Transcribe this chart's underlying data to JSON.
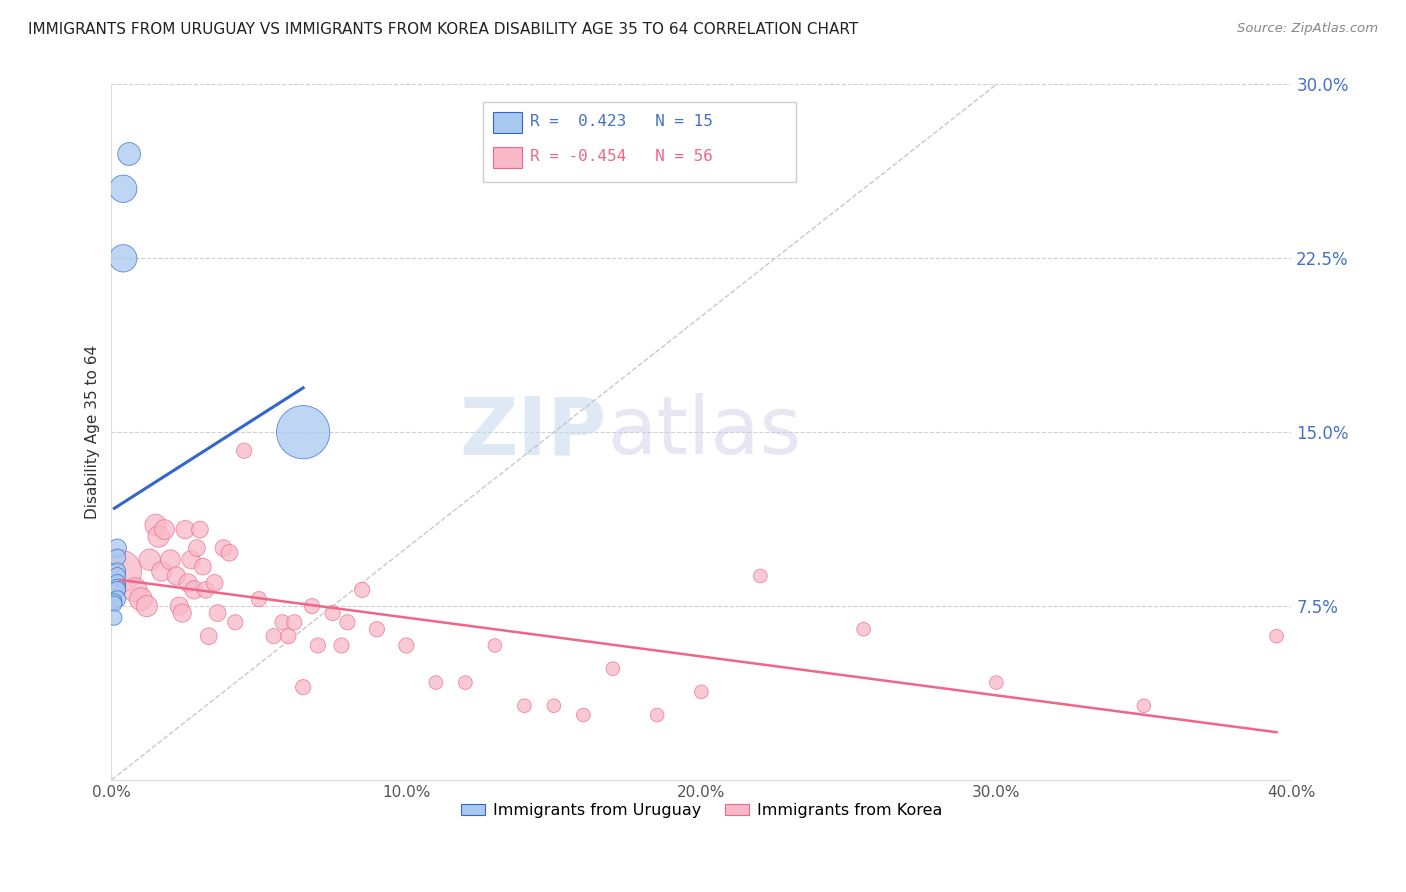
{
  "title": "IMMIGRANTS FROM URUGUAY VS IMMIGRANTS FROM KOREA DISABILITY AGE 35 TO 64 CORRELATION CHART",
  "source": "Source: ZipAtlas.com",
  "ylabel": "Disability Age 35 to 64",
  "xlim": [
    0.0,
    0.4
  ],
  "ylim": [
    0.0,
    0.3
  ],
  "xticks": [
    0.0,
    0.1,
    0.2,
    0.3,
    0.4
  ],
  "xticklabels": [
    "0.0%",
    "10.0%",
    "20.0%",
    "30.0%",
    "40.0%"
  ],
  "yticks": [
    0.0,
    0.075,
    0.15,
    0.225,
    0.3
  ],
  "yticklabels": [
    "",
    "7.5%",
    "15.0%",
    "22.5%",
    "30.0%"
  ],
  "uruguay_color": "#a8c8f0",
  "korea_color": "#f8b8c8",
  "trend_uruguay_color": "#3366cc",
  "trend_korea_color": "#ee6688",
  "ref_line_color": "#bbbbbb",
  "legend_r_uruguay": "R =  0.423",
  "legend_n_uruguay": "N = 15",
  "legend_r_korea": "R = -0.454",
  "legend_n_korea": "N = 56",
  "watermark_zip": "ZIP",
  "watermark_atlas": "atlas",
  "uruguay_x": [
    0.004,
    0.006,
    0.004,
    0.002,
    0.002,
    0.002,
    0.002,
    0.002,
    0.002,
    0.002,
    0.002,
    0.001,
    0.001,
    0.001,
    0.065
  ],
  "uruguay_y": [
    0.255,
    0.27,
    0.225,
    0.1,
    0.096,
    0.09,
    0.088,
    0.085,
    0.083,
    0.082,
    0.078,
    0.077,
    0.076,
    0.07,
    0.15
  ],
  "uruguay_size": [
    18,
    15,
    18,
    12,
    11,
    11,
    11,
    11,
    11,
    11,
    11,
    10,
    10,
    10,
    35
  ],
  "korea_x": [
    0.003,
    0.008,
    0.01,
    0.012,
    0.013,
    0.015,
    0.016,
    0.017,
    0.018,
    0.02,
    0.022,
    0.023,
    0.024,
    0.025,
    0.026,
    0.027,
    0.028,
    0.029,
    0.03,
    0.031,
    0.032,
    0.033,
    0.035,
    0.036,
    0.038,
    0.04,
    0.042,
    0.045,
    0.05,
    0.055,
    0.058,
    0.06,
    0.062,
    0.065,
    0.068,
    0.07,
    0.075,
    0.078,
    0.08,
    0.085,
    0.09,
    0.1,
    0.11,
    0.12,
    0.13,
    0.14,
    0.15,
    0.16,
    0.17,
    0.185,
    0.2,
    0.22,
    0.255,
    0.3,
    0.35,
    0.395
  ],
  "korea_y": [
    0.09,
    0.082,
    0.078,
    0.075,
    0.095,
    0.11,
    0.105,
    0.09,
    0.108,
    0.095,
    0.088,
    0.075,
    0.072,
    0.108,
    0.085,
    0.095,
    0.082,
    0.1,
    0.108,
    0.092,
    0.082,
    0.062,
    0.085,
    0.072,
    0.1,
    0.098,
    0.068,
    0.142,
    0.078,
    0.062,
    0.068,
    0.062,
    0.068,
    0.04,
    0.075,
    0.058,
    0.072,
    0.058,
    0.068,
    0.082,
    0.065,
    0.058,
    0.042,
    0.042,
    0.058,
    0.032,
    0.032,
    0.028,
    0.048,
    0.028,
    0.038,
    0.088,
    0.065,
    0.042,
    0.032,
    0.062
  ],
  "korea_size": [
    28,
    16,
    15,
    14,
    14,
    14,
    14,
    13,
    13,
    13,
    12,
    12,
    12,
    12,
    12,
    12,
    12,
    11,
    11,
    11,
    11,
    11,
    11,
    11,
    11,
    11,
    10,
    10,
    10,
    10,
    10,
    10,
    10,
    10,
    10,
    10,
    10,
    10,
    10,
    10,
    10,
    10,
    9,
    9,
    9,
    9,
    9,
    9,
    9,
    9,
    9,
    9,
    9,
    9,
    9,
    9
  ]
}
